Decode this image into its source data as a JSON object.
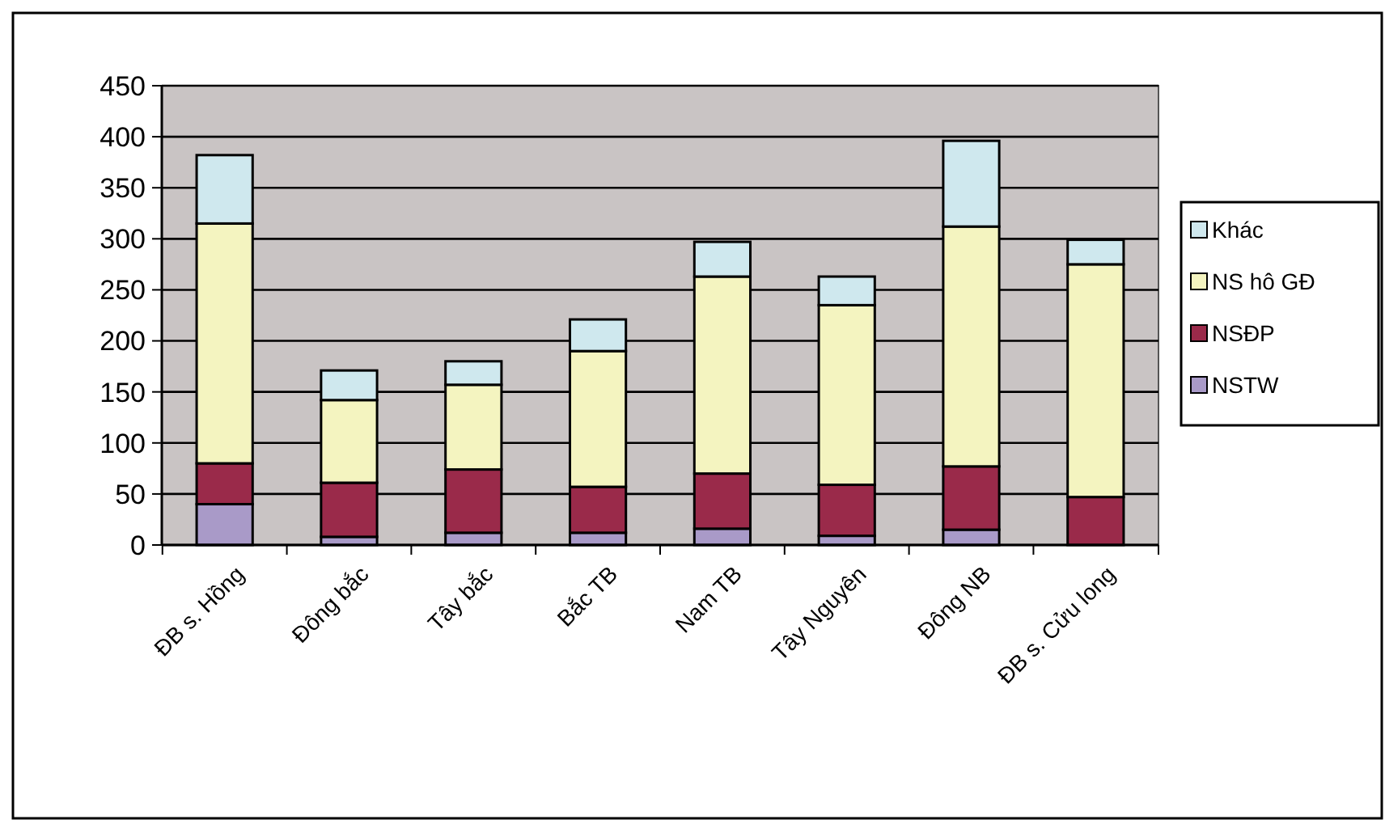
{
  "chart_data": {
    "type": "bar",
    "stacked": true,
    "categories": [
      "ĐB s. Hồng",
      "Đông bắc",
      "Tây bắc",
      "Bắc TB",
      "Nam TB",
      "Tây Nguyên",
      "Đông NB",
      "ĐB s. Cửu long"
    ],
    "series": [
      {
        "name": "NSTW",
        "color": "#a99ac8",
        "values": [
          40,
          8,
          12,
          12,
          16,
          9,
          15,
          0
        ]
      },
      {
        "name": "NSĐP",
        "color": "#9a2a4a",
        "values": [
          40,
          53,
          62,
          45,
          54,
          50,
          62,
          47
        ]
      },
      {
        "name": "NS hô GĐ",
        "color": "#f4f4c0",
        "values": [
          235,
          81,
          83,
          133,
          193,
          176,
          235,
          228
        ]
      },
      {
        "name": "Khác",
        "color": "#cfe8ee",
        "values": [
          67,
          29,
          23,
          31,
          34,
          28,
          84,
          24
        ]
      }
    ],
    "ylim": [
      0,
      450
    ],
    "yticks": [
      0,
      50,
      100,
      150,
      200,
      250,
      300,
      350,
      400,
      450
    ],
    "grid": "y",
    "legend": "right"
  }
}
